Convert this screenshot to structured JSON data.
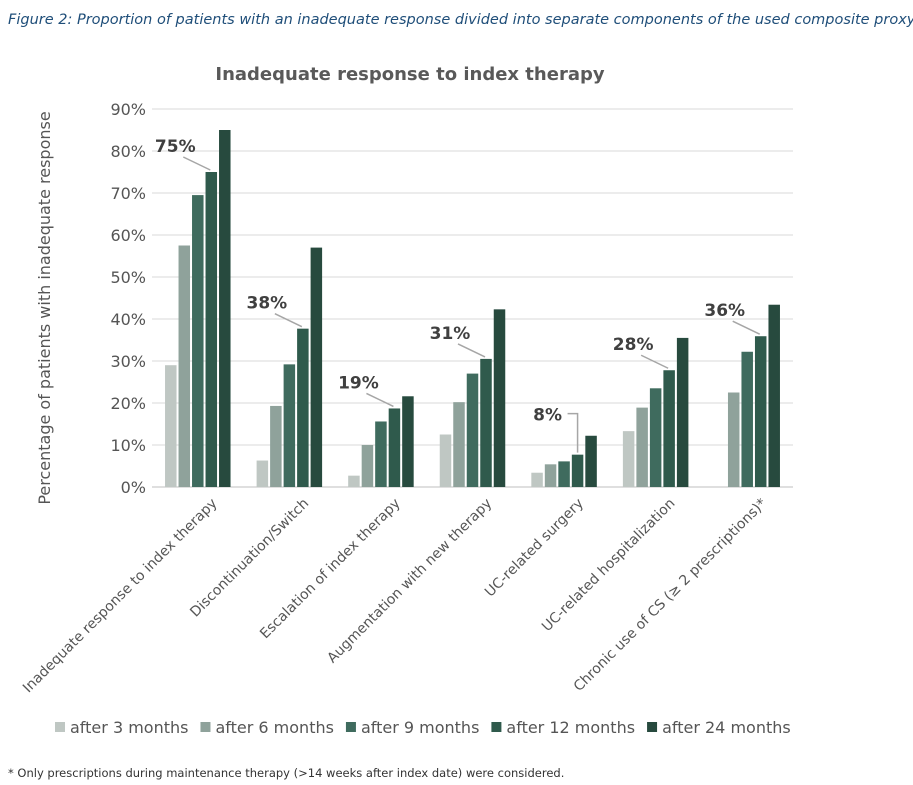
{
  "caption": "Figure 2: Proportion of patients with an inadequate response divided into separate components of the used composite proxy",
  "footnote": "* Only prescriptions during maintenance therapy (>14 weeks after index date) were considered.",
  "chart_data": {
    "type": "bar",
    "title": "Inadequate response to index therapy",
    "xlabel": "",
    "ylabel": "Percentage of patients with inadequate response",
    "ylim": [
      0,
      90
    ],
    "yticks": [
      "0%",
      "10%",
      "20%",
      "30%",
      "40%",
      "50%",
      "60%",
      "70%",
      "80%",
      "90%"
    ],
    "grid": true,
    "legend_position": "bottom",
    "categories": [
      "Inadequate response to index therapy",
      "Discontinuation/Switch",
      "Escalation of index therapy",
      "Augmentation with new therapy",
      "UC-related surgery",
      "UC-related hospitalization",
      "Chronic use of CS (≥ 2 prescriptions)*"
    ],
    "series": [
      {
        "name": "after 3 months",
        "color": "#bfc7c3",
        "values": [
          29,
          6.3,
          2.7,
          12.5,
          3.4,
          13.3,
          null
        ]
      },
      {
        "name": "after 6 months",
        "color": "#8fa29b",
        "values": [
          57.5,
          19.3,
          10,
          20.2,
          5.4,
          18.9,
          22.5
        ]
      },
      {
        "name": "after 9 months",
        "color": "#3f6b5e",
        "values": [
          69.5,
          29.2,
          15.6,
          27,
          6.1,
          23.5,
          32.2
        ]
      },
      {
        "name": "after 12 months",
        "color": "#2f5a4c",
        "values": [
          75,
          37.7,
          18.7,
          30.5,
          7.7,
          27.8,
          35.9
        ]
      },
      {
        "name": "after 24 months",
        "color": "#274a3e",
        "values": [
          85,
          57,
          21.6,
          42.3,
          12.2,
          35.5,
          43.4
        ]
      }
    ],
    "annotations": [
      {
        "category_index": 0,
        "text": "75%"
      },
      {
        "category_index": 1,
        "text": "38%"
      },
      {
        "category_index": 2,
        "text": "19%"
      },
      {
        "category_index": 3,
        "text": "31%"
      },
      {
        "category_index": 4,
        "text": "8%"
      },
      {
        "category_index": 5,
        "text": "28%"
      },
      {
        "category_index": 6,
        "text": "36%"
      }
    ]
  }
}
